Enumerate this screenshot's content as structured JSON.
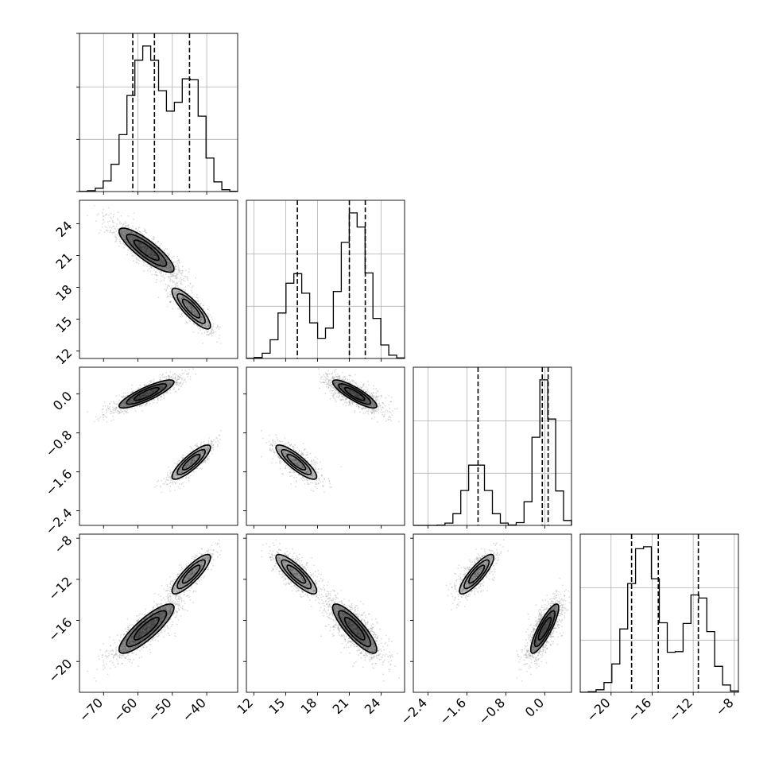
{
  "chart_data": {
    "type": "corner",
    "parameters": [
      "",
      "",
      "",
      ""
    ],
    "ranges": [
      [
        -77,
        -31
      ],
      [
        11.3,
        26.2
      ],
      [
        -2.7,
        0.55
      ],
      [
        -23,
        -7.6
      ]
    ],
    "ticks": [
      {
        "values": [
          -70,
          -60,
          -50,
          -40
        ],
        "labels": [
          "−70",
          "−60",
          "−50",
          "−40"
        ]
      },
      {
        "values": [
          12,
          15,
          18,
          21,
          24
        ],
        "labels": [
          "12",
          "15",
          "18",
          "21",
          "24"
        ]
      },
      {
        "values": [
          -2.4,
          -1.6,
          -0.8,
          0.0
        ],
        "labels": [
          "−2.4",
          "−1.6",
          "−0.8",
          "0.0"
        ]
      },
      {
        "values": [
          -20,
          -16,
          -12,
          -8
        ],
        "labels": [
          "−20",
          "−16",
          "−12",
          "−8"
        ]
      }
    ],
    "quantiles": [
      [
        -61.5,
        -55.2,
        -45.0
      ],
      [
        16.1,
        21.0,
        22.5
      ],
      [
        -1.37,
        -0.05,
        0.07
      ],
      [
        -18.0,
        -15.4,
        -11.5
      ]
    ],
    "modes": [
      {
        "weight": 0.65,
        "mean": [
          -57.5,
          21.5,
          0.0,
          -16.8
        ],
        "sd": [
          5.0,
          1.3,
          0.18,
          1.5
        ]
      },
      {
        "weight": 0.35,
        "mean": [
          -44.5,
          16.0,
          -1.4,
          -11.5
        ],
        "sd": [
          3.5,
          1.2,
          0.22,
          1.2
        ]
      }
    ],
    "grid": true,
    "hist_bins": 20,
    "colors": {
      "line": "#000000",
      "grid": "#b0b0b0",
      "density": "#000000"
    }
  }
}
